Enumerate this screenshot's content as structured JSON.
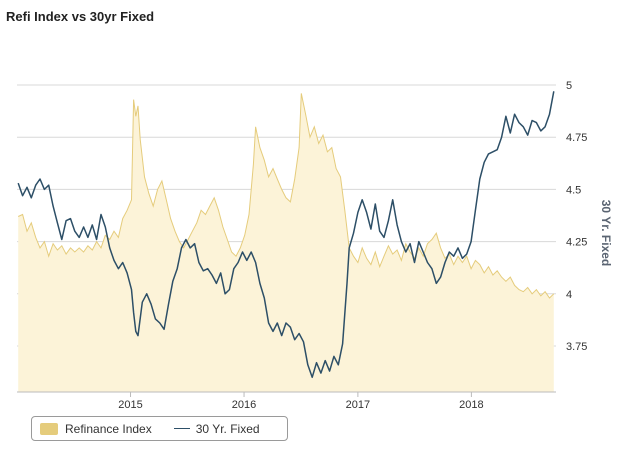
{
  "title": "Refi Index vs 30yr Fixed",
  "chart_data": {
    "type": "area+line",
    "title": "Refi Index vs 30yr Fixed",
    "x_start": "2014-01-01",
    "x_end": "2018-09-30",
    "xticks": [
      {
        "label": "2015",
        "date": "2015-01-01"
      },
      {
        "label": "2016",
        "date": "2016-01-01"
      },
      {
        "label": "2017",
        "date": "2017-01-01"
      },
      {
        "label": "2018",
        "date": "2018-01-01"
      }
    ],
    "yaxis_right": {
      "label": "30 Yr. Fixed",
      "ylim": [
        3.5,
        5.0
      ],
      "ticks": [
        {
          "value": 5,
          "label": "5"
        },
        {
          "value": 4.75,
          "label": "4.75"
        },
        {
          "value": 4.5,
          "label": "4.5"
        },
        {
          "value": 4.25,
          "label": "4.25"
        },
        {
          "value": 4,
          "label": "4"
        },
        {
          "value": 3.75,
          "label": "3.75"
        }
      ]
    },
    "grid": true,
    "legend_position": "bottom-left",
    "series": [
      {
        "name": "Refinance Index",
        "kind": "area",
        "color": "#e5cc7c",
        "fill": "#fcf3d8",
        "note_scale": "plotted against the 30 Yr. Fixed axis scale",
        "points": [
          [
            "2014-01-05",
            4.37
          ],
          [
            "2014-01-19",
            4.38
          ],
          [
            "2014-02-02",
            4.3
          ],
          [
            "2014-02-16",
            4.34
          ],
          [
            "2014-03-02",
            4.27
          ],
          [
            "2014-03-16",
            4.22
          ],
          [
            "2014-03-30",
            4.25
          ],
          [
            "2014-04-13",
            4.18
          ],
          [
            "2014-04-27",
            4.24
          ],
          [
            "2014-05-11",
            4.21
          ],
          [
            "2014-05-25",
            4.23
          ],
          [
            "2014-06-08",
            4.19
          ],
          [
            "2014-06-22",
            4.22
          ],
          [
            "2014-07-06",
            4.2
          ],
          [
            "2014-07-20",
            4.22
          ],
          [
            "2014-08-03",
            4.2
          ],
          [
            "2014-08-17",
            4.23
          ],
          [
            "2014-08-31",
            4.21
          ],
          [
            "2014-09-14",
            4.25
          ],
          [
            "2014-09-28",
            4.22
          ],
          [
            "2014-10-12",
            4.28
          ],
          [
            "2014-10-26",
            4.26
          ],
          [
            "2014-11-09",
            4.3
          ],
          [
            "2014-11-23",
            4.27
          ],
          [
            "2014-12-07",
            4.36
          ],
          [
            "2014-12-21",
            4.4
          ],
          [
            "2015-01-04",
            4.45
          ],
          [
            "2015-01-11",
            4.93
          ],
          [
            "2015-01-18",
            4.85
          ],
          [
            "2015-01-25",
            4.9
          ],
          [
            "2015-02-01",
            4.74
          ],
          [
            "2015-02-15",
            4.56
          ],
          [
            "2015-03-01",
            4.48
          ],
          [
            "2015-03-15",
            4.42
          ],
          [
            "2015-03-29",
            4.5
          ],
          [
            "2015-04-12",
            4.54
          ],
          [
            "2015-04-26",
            4.45
          ],
          [
            "2015-05-10",
            4.36
          ],
          [
            "2015-05-24",
            4.3
          ],
          [
            "2015-06-07",
            4.25
          ],
          [
            "2015-06-21",
            4.22
          ],
          [
            "2015-07-05",
            4.26
          ],
          [
            "2015-07-19",
            4.3
          ],
          [
            "2015-08-02",
            4.34
          ],
          [
            "2015-08-16",
            4.4
          ],
          [
            "2015-08-30",
            4.38
          ],
          [
            "2015-09-13",
            4.42
          ],
          [
            "2015-09-27",
            4.46
          ],
          [
            "2015-10-11",
            4.4
          ],
          [
            "2015-10-25",
            4.32
          ],
          [
            "2015-11-08",
            4.26
          ],
          [
            "2015-11-22",
            4.2
          ],
          [
            "2015-12-06",
            4.18
          ],
          [
            "2015-12-20",
            4.22
          ],
          [
            "2016-01-03",
            4.28
          ],
          [
            "2016-01-17",
            4.38
          ],
          [
            "2016-01-31",
            4.62
          ],
          [
            "2016-02-07",
            4.8
          ],
          [
            "2016-02-21",
            4.7
          ],
          [
            "2016-03-06",
            4.64
          ],
          [
            "2016-03-20",
            4.56
          ],
          [
            "2016-04-03",
            4.6
          ],
          [
            "2016-04-17",
            4.55
          ],
          [
            "2016-05-01",
            4.5
          ],
          [
            "2016-05-15",
            4.46
          ],
          [
            "2016-05-29",
            4.44
          ],
          [
            "2016-06-12",
            4.55
          ],
          [
            "2016-06-26",
            4.7
          ],
          [
            "2016-07-03",
            4.96
          ],
          [
            "2016-07-17",
            4.86
          ],
          [
            "2016-07-31",
            4.75
          ],
          [
            "2016-08-14",
            4.8
          ],
          [
            "2016-08-28",
            4.72
          ],
          [
            "2016-09-11",
            4.76
          ],
          [
            "2016-09-25",
            4.68
          ],
          [
            "2016-10-09",
            4.7
          ],
          [
            "2016-10-23",
            4.6
          ],
          [
            "2016-11-06",
            4.56
          ],
          [
            "2016-11-20",
            4.4
          ],
          [
            "2016-12-04",
            4.22
          ],
          [
            "2016-12-18",
            4.18
          ],
          [
            "2017-01-01",
            4.15
          ],
          [
            "2017-01-15",
            4.22
          ],
          [
            "2017-01-29",
            4.17
          ],
          [
            "2017-02-12",
            4.14
          ],
          [
            "2017-02-26",
            4.2
          ],
          [
            "2017-03-12",
            4.13
          ],
          [
            "2017-03-26",
            4.18
          ],
          [
            "2017-04-09",
            4.23
          ],
          [
            "2017-04-23",
            4.19
          ],
          [
            "2017-05-07",
            4.21
          ],
          [
            "2017-05-21",
            4.16
          ],
          [
            "2017-06-04",
            4.24
          ],
          [
            "2017-06-18",
            4.2
          ],
          [
            "2017-07-02",
            4.17
          ],
          [
            "2017-07-16",
            4.22
          ],
          [
            "2017-07-30",
            4.18
          ],
          [
            "2017-08-13",
            4.24
          ],
          [
            "2017-08-27",
            4.26
          ],
          [
            "2017-09-10",
            4.29
          ],
          [
            "2017-09-24",
            4.22
          ],
          [
            "2017-10-08",
            4.17
          ],
          [
            "2017-10-22",
            4.19
          ],
          [
            "2017-11-05",
            4.14
          ],
          [
            "2017-11-19",
            4.18
          ],
          [
            "2017-12-03",
            4.15
          ],
          [
            "2017-12-17",
            4.18
          ],
          [
            "2017-12-31",
            4.12
          ],
          [
            "2018-01-14",
            4.16
          ],
          [
            "2018-01-28",
            4.14
          ],
          [
            "2018-02-11",
            4.1
          ],
          [
            "2018-02-25",
            4.13
          ],
          [
            "2018-03-11",
            4.09
          ],
          [
            "2018-03-25",
            4.11
          ],
          [
            "2018-04-08",
            4.08
          ],
          [
            "2018-04-22",
            4.06
          ],
          [
            "2018-05-06",
            4.08
          ],
          [
            "2018-05-20",
            4.04
          ],
          [
            "2018-06-03",
            4.02
          ],
          [
            "2018-06-17",
            4.01
          ],
          [
            "2018-07-01",
            4.03
          ],
          [
            "2018-07-15",
            4.0
          ],
          [
            "2018-07-29",
            4.02
          ],
          [
            "2018-08-12",
            3.99
          ],
          [
            "2018-08-26",
            4.01
          ],
          [
            "2018-09-09",
            3.98
          ],
          [
            "2018-09-23",
            4.0
          ]
        ]
      },
      {
        "name": "30 Yr. Fixed",
        "kind": "line",
        "color": "#2d4f67",
        "points": [
          [
            "2014-01-05",
            4.53
          ],
          [
            "2014-01-19",
            4.47
          ],
          [
            "2014-02-02",
            4.51
          ],
          [
            "2014-02-16",
            4.46
          ],
          [
            "2014-03-02",
            4.52
          ],
          [
            "2014-03-16",
            4.55
          ],
          [
            "2014-03-30",
            4.5
          ],
          [
            "2014-04-13",
            4.52
          ],
          [
            "2014-04-27",
            4.42
          ],
          [
            "2014-05-11",
            4.34
          ],
          [
            "2014-05-25",
            4.26
          ],
          [
            "2014-06-08",
            4.35
          ],
          [
            "2014-06-22",
            4.36
          ],
          [
            "2014-07-06",
            4.3
          ],
          [
            "2014-07-20",
            4.27
          ],
          [
            "2014-08-03",
            4.32
          ],
          [
            "2014-08-17",
            4.27
          ],
          [
            "2014-08-31",
            4.33
          ],
          [
            "2014-09-14",
            4.26
          ],
          [
            "2014-09-28",
            4.38
          ],
          [
            "2014-10-12",
            4.32
          ],
          [
            "2014-10-26",
            4.22
          ],
          [
            "2014-11-09",
            4.16
          ],
          [
            "2014-11-23",
            4.12
          ],
          [
            "2014-12-07",
            4.15
          ],
          [
            "2014-12-21",
            4.1
          ],
          [
            "2015-01-04",
            4.02
          ],
          [
            "2015-01-11",
            3.91
          ],
          [
            "2015-01-18",
            3.82
          ],
          [
            "2015-01-25",
            3.8
          ],
          [
            "2015-02-08",
            3.96
          ],
          [
            "2015-02-22",
            4.0
          ],
          [
            "2015-03-08",
            3.95
          ],
          [
            "2015-03-22",
            3.88
          ],
          [
            "2015-04-05",
            3.86
          ],
          [
            "2015-04-19",
            3.83
          ],
          [
            "2015-05-03",
            3.95
          ],
          [
            "2015-05-17",
            4.06
          ],
          [
            "2015-05-31",
            4.12
          ],
          [
            "2015-06-14",
            4.22
          ],
          [
            "2015-06-28",
            4.26
          ],
          [
            "2015-07-12",
            4.22
          ],
          [
            "2015-07-26",
            4.24
          ],
          [
            "2015-08-09",
            4.15
          ],
          [
            "2015-08-23",
            4.11
          ],
          [
            "2015-09-06",
            4.12
          ],
          [
            "2015-09-20",
            4.09
          ],
          [
            "2015-10-04",
            4.05
          ],
          [
            "2015-10-18",
            4.1
          ],
          [
            "2015-11-01",
            4.0
          ],
          [
            "2015-11-15",
            4.02
          ],
          [
            "2015-11-29",
            4.12
          ],
          [
            "2015-12-13",
            4.15
          ],
          [
            "2015-12-27",
            4.2
          ],
          [
            "2016-01-10",
            4.16
          ],
          [
            "2016-01-24",
            4.2
          ],
          [
            "2016-02-07",
            4.15
          ],
          [
            "2016-02-21",
            4.05
          ],
          [
            "2016-03-06",
            3.98
          ],
          [
            "2016-03-20",
            3.86
          ],
          [
            "2016-04-03",
            3.82
          ],
          [
            "2016-04-17",
            3.86
          ],
          [
            "2016-05-01",
            3.8
          ],
          [
            "2016-05-15",
            3.86
          ],
          [
            "2016-05-29",
            3.84
          ],
          [
            "2016-06-12",
            3.78
          ],
          [
            "2016-06-26",
            3.81
          ],
          [
            "2016-07-10",
            3.77
          ],
          [
            "2016-07-24",
            3.66
          ],
          [
            "2016-08-07",
            3.6
          ],
          [
            "2016-08-21",
            3.67
          ],
          [
            "2016-09-04",
            3.62
          ],
          [
            "2016-09-18",
            3.68
          ],
          [
            "2016-10-02",
            3.63
          ],
          [
            "2016-10-16",
            3.7
          ],
          [
            "2016-10-30",
            3.66
          ],
          [
            "2016-11-13",
            3.76
          ],
          [
            "2016-11-27",
            4.05
          ],
          [
            "2016-12-04",
            4.22
          ],
          [
            "2016-12-18",
            4.29
          ],
          [
            "2017-01-01",
            4.39
          ],
          [
            "2017-01-15",
            4.45
          ],
          [
            "2017-01-29",
            4.39
          ],
          [
            "2017-02-12",
            4.31
          ],
          [
            "2017-02-26",
            4.43
          ],
          [
            "2017-03-12",
            4.3
          ],
          [
            "2017-03-26",
            4.27
          ],
          [
            "2017-04-09",
            4.35
          ],
          [
            "2017-04-23",
            4.45
          ],
          [
            "2017-05-07",
            4.33
          ],
          [
            "2017-05-21",
            4.25
          ],
          [
            "2017-06-04",
            4.2
          ],
          [
            "2017-06-18",
            4.24
          ],
          [
            "2017-07-02",
            4.15
          ],
          [
            "2017-07-16",
            4.25
          ],
          [
            "2017-07-30",
            4.2
          ],
          [
            "2017-08-13",
            4.15
          ],
          [
            "2017-08-27",
            4.12
          ],
          [
            "2017-09-10",
            4.05
          ],
          [
            "2017-09-24",
            4.08
          ],
          [
            "2017-10-08",
            4.15
          ],
          [
            "2017-10-22",
            4.2
          ],
          [
            "2017-11-05",
            4.18
          ],
          [
            "2017-11-19",
            4.22
          ],
          [
            "2017-12-03",
            4.17
          ],
          [
            "2017-12-17",
            4.19
          ],
          [
            "2017-12-31",
            4.25
          ],
          [
            "2018-01-14",
            4.4
          ],
          [
            "2018-01-28",
            4.55
          ],
          [
            "2018-02-11",
            4.63
          ],
          [
            "2018-02-25",
            4.67
          ],
          [
            "2018-03-11",
            4.68
          ],
          [
            "2018-03-25",
            4.69
          ],
          [
            "2018-04-08",
            4.75
          ],
          [
            "2018-04-22",
            4.85
          ],
          [
            "2018-05-06",
            4.77
          ],
          [
            "2018-05-20",
            4.86
          ],
          [
            "2018-06-03",
            4.82
          ],
          [
            "2018-06-17",
            4.8
          ],
          [
            "2018-07-01",
            4.76
          ],
          [
            "2018-07-15",
            4.83
          ],
          [
            "2018-07-29",
            4.82
          ],
          [
            "2018-08-12",
            4.78
          ],
          [
            "2018-08-26",
            4.8
          ],
          [
            "2018-09-09",
            4.86
          ],
          [
            "2018-09-23",
            4.97
          ]
        ]
      }
    ]
  }
}
